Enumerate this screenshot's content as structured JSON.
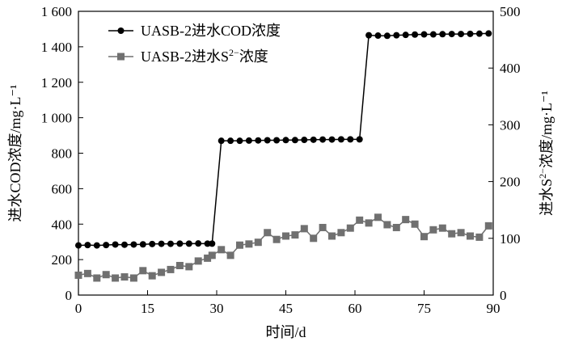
{
  "chart_data": {
    "type": "line",
    "xlabel": "时间/d",
    "ylabel_left": "进水COD浓度/mg·L⁻¹",
    "ylabel_right_prefix": "进水S",
    "ylabel_right_sup": "2−",
    "ylabel_right_suffix": "浓度/mg·L⁻¹",
    "xlim": [
      0,
      90
    ],
    "ylim_left": [
      0,
      1600
    ],
    "ylim_right": [
      0,
      500
    ],
    "x_ticks": [
      0,
      15,
      30,
      45,
      60,
      75,
      90
    ],
    "x_tick_labels": [
      "0",
      "15",
      "30",
      "45",
      "60",
      "75",
      "90"
    ],
    "y_left_ticks": [
      0,
      200,
      400,
      600,
      800,
      1000,
      1200,
      1400,
      1600
    ],
    "y_left_tick_labels": [
      "0",
      "200",
      "400",
      "600",
      "800",
      "1 000",
      "1 200",
      "1 400",
      "1 600"
    ],
    "y_right_ticks": [
      0,
      100,
      200,
      300,
      400,
      500
    ],
    "y_right_tick_labels": [
      "0",
      "100",
      "200",
      "300",
      "400",
      "500"
    ],
    "legend_position": "top-left",
    "series": [
      {
        "name": "UASB-2进水COD浓度",
        "axis": "left",
        "marker": "circle",
        "color": "#000000",
        "x": [
          0,
          2,
          4,
          6,
          8,
          10,
          12,
          14,
          16,
          18,
          20,
          22,
          24,
          26,
          28,
          29,
          31,
          33,
          35,
          37,
          39,
          41,
          43,
          45,
          47,
          49,
          51,
          53,
          55,
          57,
          59,
          61,
          63,
          65,
          67,
          69,
          71,
          73,
          75,
          77,
          79,
          81,
          83,
          85,
          87,
          89
        ],
        "values": [
          280,
          282,
          280,
          282,
          285,
          284,
          285,
          286,
          288,
          289,
          289,
          290,
          290,
          291,
          290,
          290,
          870,
          870,
          870,
          871,
          872,
          873,
          873,
          874,
          874,
          875,
          876,
          877,
          877,
          878,
          878,
          878,
          1465,
          1463,
          1462,
          1465,
          1467,
          1469,
          1470,
          1470,
          1471,
          1472,
          1472,
          1473,
          1474,
          1475
        ]
      },
      {
        "name_prefix": "UASB-2进水S",
        "name_sup": "2−",
        "name_suffix": "浓度",
        "axis": "right",
        "marker": "square",
        "color": "#707070",
        "x": [
          0,
          2,
          4,
          6,
          8,
          10,
          12,
          14,
          16,
          18,
          20,
          22,
          24,
          26,
          28,
          29,
          31,
          33,
          35,
          37,
          39,
          41,
          43,
          45,
          47,
          49,
          51,
          53,
          55,
          57,
          59,
          61,
          63,
          65,
          67,
          69,
          71,
          73,
          75,
          77,
          79,
          81,
          83,
          85,
          87,
          89
        ],
        "values": [
          35,
          38,
          30,
          36,
          30,
          32,
          30,
          43,
          34,
          40,
          45,
          52,
          50,
          60,
          65,
          70,
          80,
          70,
          88,
          90,
          93,
          110,
          98,
          104,
          106,
          117,
          100,
          119,
          104,
          110,
          118,
          132,
          127,
          137,
          124,
          119,
          133,
          125,
          103,
          115,
          118,
          108,
          110,
          104,
          102,
          122
        ]
      }
    ]
  }
}
